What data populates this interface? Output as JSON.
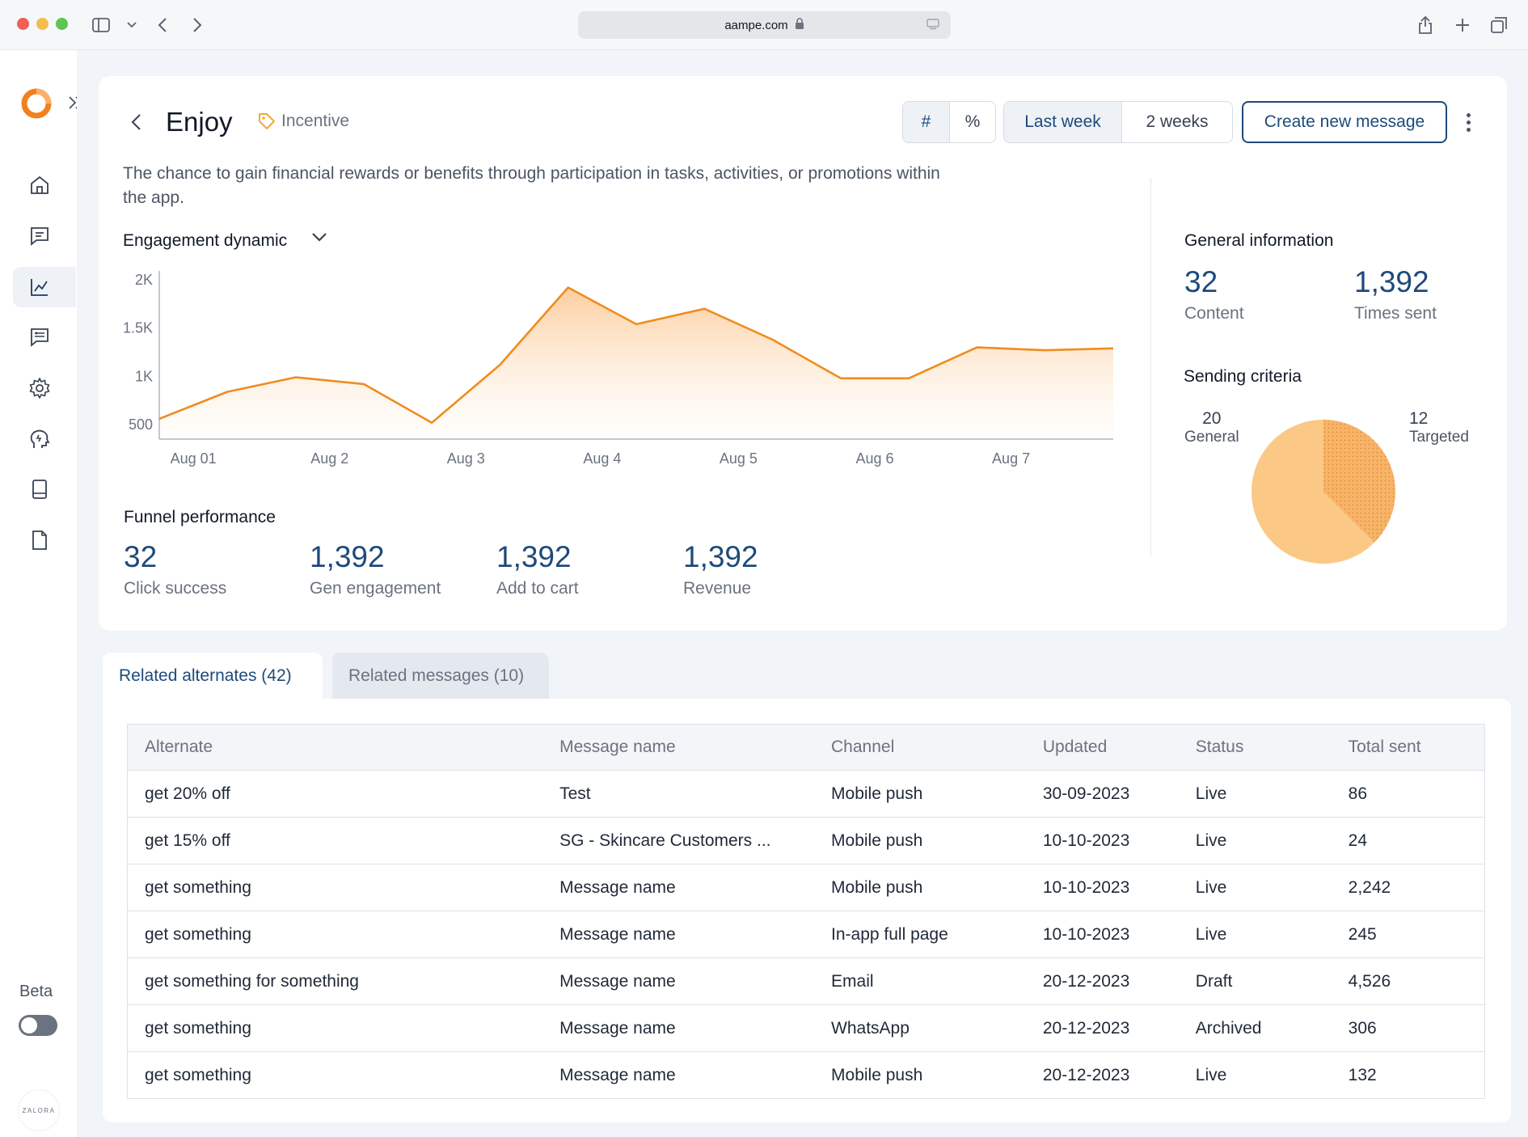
{
  "browser": {
    "url": "aampe.com"
  },
  "sidebar": {
    "beta_label": "Beta",
    "brand": "ZALORA"
  },
  "header": {
    "title": "Enjoy",
    "tag": "Incentive",
    "toggle_count": "#",
    "toggle_percent": "%",
    "period_last_week": "Last week",
    "period_two_weeks": "2 weeks",
    "create_button": "Create new message",
    "description": "The chance to gain financial rewards or benefits through participation in tasks, activities, or promotions within the app."
  },
  "engagement": {
    "title": "Engagement dynamic"
  },
  "chart_data": {
    "type": "area",
    "title": "Engagement dynamic",
    "x": [
      0,
      0.5,
      1,
      1.5,
      2,
      2.5,
      3,
      3.5,
      4,
      4.5,
      5,
      5.5,
      6,
      6.5,
      7
    ],
    "y": [
      560,
      840,
      990,
      920,
      520,
      1120,
      1920,
      1540,
      1700,
      1380,
      980,
      980,
      1300,
      1270,
      1290
    ],
    "x_tick_positions": [
      0.25,
      1.25,
      2.25,
      3.25,
      4.25,
      5.25,
      6.25
    ],
    "x_tick_labels": [
      "Aug 01",
      "Aug 2",
      "Aug 3",
      "Aug 4",
      "Aug 5",
      "Aug 6",
      "Aug 7"
    ],
    "y_tick_values": [
      500,
      1000,
      1500,
      2000
    ],
    "y_tick_labels": [
      "500",
      "1K",
      "1.5K",
      "2K"
    ],
    "ylim": [
      350,
      2050
    ],
    "xlim": [
      0,
      7
    ],
    "color": "#f08c1e",
    "xlabel": "",
    "ylabel": ""
  },
  "funnel": {
    "title": "Funnel performance",
    "metrics": [
      {
        "value": "32",
        "label": "Click success"
      },
      {
        "value": "1,392",
        "label": "Gen engagement"
      },
      {
        "value": "1,392",
        "label": "Add to cart"
      },
      {
        "value": "1,392",
        "label": "Revenue"
      }
    ]
  },
  "general_info": {
    "title": "General information",
    "content_value": "32",
    "content_label": "Content",
    "times_sent_value": "1,392",
    "times_sent_label": "Times sent"
  },
  "sending_criteria": {
    "title": "Sending criteria",
    "general_value": "20",
    "general_label": "General",
    "targeted_value": "12",
    "targeted_label": "Targeted",
    "colors": {
      "general": "#fcc886",
      "targeted": "#f7b469"
    }
  },
  "tabs": {
    "related_alternates": "Related alternates (42)",
    "related_messages": "Related messages (10)"
  },
  "table": {
    "columns": [
      "Alternate",
      "Message name",
      "Channel",
      "Updated",
      "Status",
      "Total sent"
    ],
    "rows": [
      [
        "get  20% off",
        "Test",
        "Mobile push",
        "30-09-2023",
        "Live",
        "86"
      ],
      [
        "get 15% off",
        "SG - Skincare Customers ...",
        "Mobile push",
        "10-10-2023",
        "Live",
        "24"
      ],
      [
        "get something",
        "Message name",
        "Mobile push",
        "10-10-2023",
        "Live",
        "2,242"
      ],
      [
        "get something",
        "Message name",
        "In-app full page",
        "10-10-2023",
        "Live",
        "245"
      ],
      [
        "get something for something",
        "Message name",
        "Email",
        "20-12-2023",
        "Draft",
        "4,526"
      ],
      [
        "get something",
        "Message name",
        "WhatsApp",
        "20-12-2023",
        "Archived",
        "306"
      ],
      [
        "get something",
        "Message name",
        "Mobile push",
        "20-12-2023",
        "Live",
        "132"
      ]
    ]
  },
  "colors": {
    "accent": "#1e4a7a",
    "orange": "#f08c1e",
    "page_bg": "#f1f4f8"
  }
}
